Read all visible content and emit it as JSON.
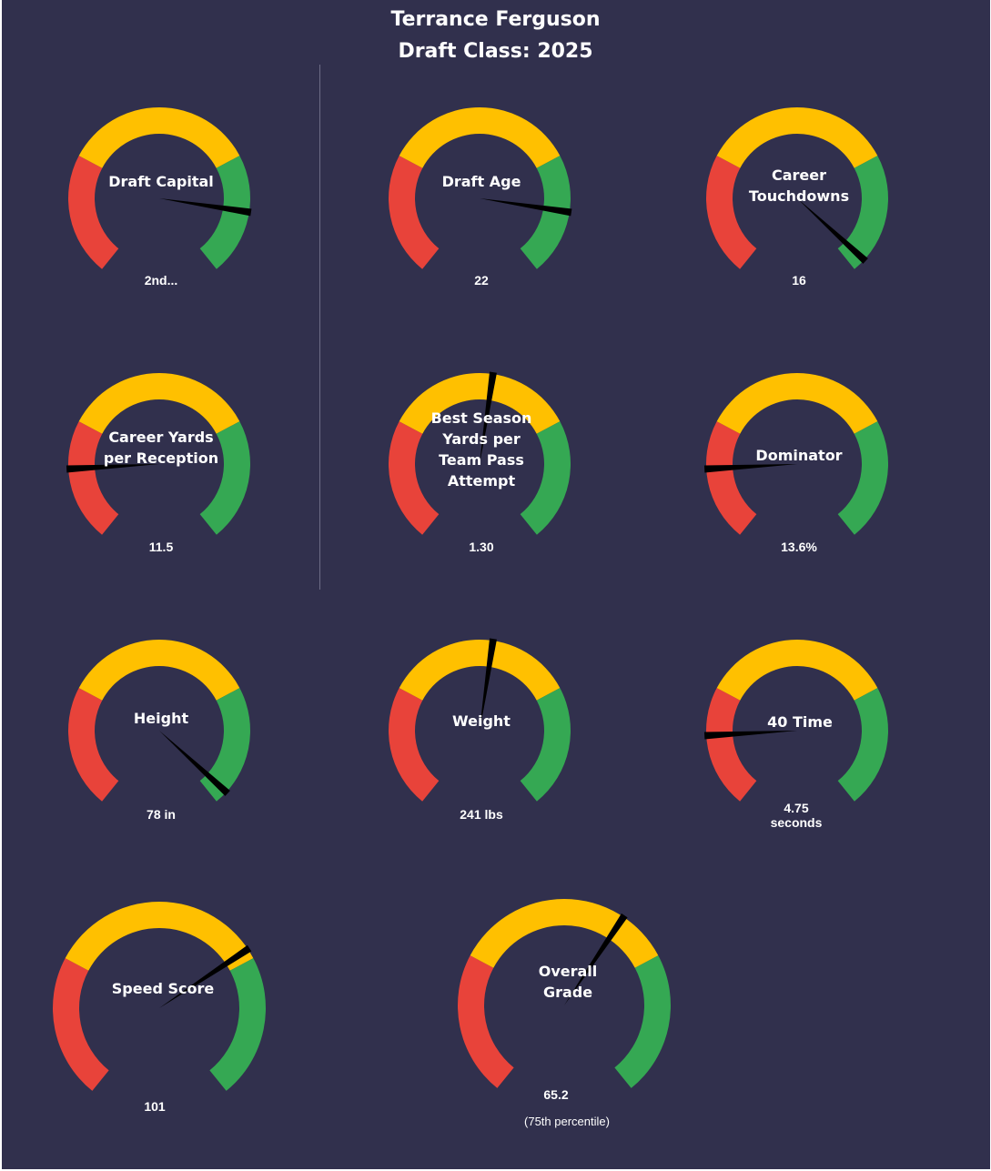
{
  "header": {
    "player_name": "Terrance Ferguson",
    "draft_class": "Draft Class: 2025"
  },
  "colors": {
    "background": "#31304d",
    "low_zone": "#e8433a",
    "mid_zone": "#ffc000",
    "high_zone": "#35a853",
    "needle": "#000000",
    "text": "#ffffff"
  },
  "gauges": [
    {
      "id": "draft-capital",
      "label_lines": [
        "Draft Capital"
      ],
      "value_lines": [
        "2nd..."
      ],
      "needle_fraction": 0.85
    },
    {
      "id": "draft-age",
      "label_lines": [
        "Draft Age"
      ],
      "value_lines": [
        "22"
      ],
      "needle_fraction": 0.85
    },
    {
      "id": "career-touchdowns",
      "label_lines": [
        "Career",
        "Touchdowns"
      ],
      "value_lines": [
        "16"
      ],
      "needle_fraction": 0.97
    },
    {
      "id": "career-ypr",
      "label_lines": [
        "Career Yards",
        "per Reception"
      ],
      "value_lines": [
        "11.5"
      ],
      "needle_fraction": 0.17
    },
    {
      "id": "best-season-yptpa",
      "label_lines": [
        "Best Season",
        "Yards per",
        "Team Pass",
        "Attempt"
      ],
      "value_lines": [
        "1.30"
      ],
      "needle_fraction": 0.53
    },
    {
      "id": "dominator",
      "label_lines": [
        "Dominator"
      ],
      "value_lines": [
        "13.6%"
      ],
      "needle_fraction": 0.17
    },
    {
      "id": "height",
      "label_lines": [
        "Height"
      ],
      "value_lines": [
        "78 in"
      ],
      "needle_fraction": 0.97
    },
    {
      "id": "weight",
      "label_lines": [
        "Weight"
      ],
      "value_lines": [
        "241 lbs"
      ],
      "needle_fraction": 0.53
    },
    {
      "id": "forty-time",
      "label_lines": [
        "40 Time"
      ],
      "value_lines": [
        "4.75",
        "seconds"
      ],
      "needle_fraction": 0.17
    },
    {
      "id": "speed-score",
      "label_lines": [
        "Speed Score"
      ],
      "value_lines": [
        "101"
      ],
      "needle_fraction": 0.7
    },
    {
      "id": "overall-grade",
      "label_lines": [
        "Overall",
        "Grade"
      ],
      "value_lines": [
        "65.2"
      ],
      "sub_text": "(75th  percentile)",
      "needle_fraction": 0.62
    }
  ]
}
